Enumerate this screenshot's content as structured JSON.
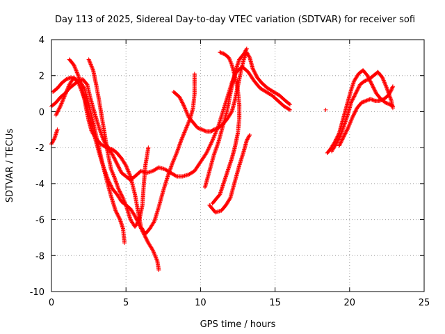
{
  "chart_data": {
    "type": "scatter",
    "title": "Day 113 of 2025, Sidereal Day-to-day VTEC variation (SDTVAR) for receiver sofi",
    "xlabel": "GPS time / hours",
    "ylabel": "SDTVAR / TECUs",
    "xlim": [
      0,
      25
    ],
    "ylim": [
      -10,
      4
    ],
    "xticks": [
      "0",
      "5",
      "10",
      "15",
      "20",
      "25"
    ],
    "yticks": [
      "-10",
      "-8",
      "-6",
      "-4",
      "-2",
      "0",
      "2",
      "4"
    ],
    "grid": true,
    "marker": "+",
    "color": "#ff0000",
    "series": [
      {
        "points": [
          [
            0.0,
            -1.8
          ],
          [
            0.2,
            -1.5
          ],
          [
            0.4,
            -1.0
          ]
        ]
      },
      {
        "points": [
          [
            0.0,
            0.3
          ],
          [
            0.3,
            0.5
          ],
          [
            0.6,
            0.8
          ],
          [
            0.9,
            1.0
          ],
          [
            1.2,
            1.3
          ],
          [
            1.5,
            1.5
          ],
          [
            1.8,
            1.7
          ],
          [
            2.1,
            1.8
          ],
          [
            2.4,
            1.5
          ],
          [
            2.6,
            0.8
          ],
          [
            2.9,
            -0.1
          ],
          [
            3.2,
            -0.9
          ],
          [
            3.5,
            -1.6
          ],
          [
            3.8,
            -2.0
          ],
          [
            4.1,
            -2.4
          ],
          [
            4.4,
            -2.9
          ],
          [
            4.7,
            -3.4
          ],
          [
            5.0,
            -3.6
          ],
          [
            5.3,
            -3.8
          ],
          [
            5.6,
            -3.6
          ],
          [
            6.0,
            -3.3
          ],
          [
            6.4,
            -3.4
          ],
          [
            6.8,
            -3.3
          ],
          [
            7.2,
            -3.1
          ],
          [
            7.6,
            -3.2
          ],
          [
            8.0,
            -3.4
          ],
          [
            8.4,
            -3.6
          ],
          [
            8.8,
            -3.6
          ],
          [
            9.2,
            -3.5
          ],
          [
            9.6,
            -3.3
          ],
          [
            10.0,
            -2.8
          ],
          [
            10.4,
            -2.3
          ],
          [
            10.8,
            -1.6
          ],
          [
            11.2,
            -0.8
          ],
          [
            11.5,
            0.0
          ],
          [
            11.8,
            0.8
          ],
          [
            12.1,
            1.6
          ],
          [
            12.4,
            2.2
          ],
          [
            12.8,
            2.5
          ],
          [
            13.2,
            2.2
          ],
          [
            13.6,
            1.7
          ],
          [
            14.0,
            1.3
          ],
          [
            14.4,
            1.1
          ],
          [
            14.8,
            0.9
          ],
          [
            15.2,
            0.6
          ],
          [
            15.6,
            0.3
          ],
          [
            16.0,
            0.1
          ]
        ]
      },
      {
        "points": [
          [
            0.1,
            1.1
          ],
          [
            0.4,
            1.3
          ],
          [
            0.7,
            1.6
          ],
          [
            1.0,
            1.8
          ],
          [
            1.3,
            1.9
          ],
          [
            1.6,
            1.8
          ],
          [
            1.9,
            1.7
          ],
          [
            2.2,
            1.3
          ],
          [
            2.5,
            0.4
          ],
          [
            2.8,
            -0.6
          ],
          [
            3.1,
            -1.7
          ],
          [
            3.4,
            -2.8
          ],
          [
            3.7,
            -3.8
          ],
          [
            4.0,
            -4.7
          ],
          [
            4.3,
            -5.5
          ],
          [
            4.6,
            -6.0
          ],
          [
            4.8,
            -6.5
          ],
          [
            4.9,
            -7.3
          ]
        ]
      },
      {
        "points": [
          [
            0.3,
            -0.2
          ],
          [
            0.6,
            0.3
          ],
          [
            0.9,
            0.9
          ],
          [
            1.2,
            1.5
          ],
          [
            1.5,
            1.9
          ],
          [
            1.8,
            1.6
          ],
          [
            2.0,
            1.2
          ],
          [
            2.3,
            0.5
          ],
          [
            2.6,
            -0.4
          ],
          [
            2.9,
            -1.4
          ],
          [
            3.2,
            -2.3
          ],
          [
            3.5,
            -3.1
          ],
          [
            3.8,
            -3.8
          ],
          [
            4.1,
            -4.3
          ],
          [
            4.4,
            -4.6
          ],
          [
            4.7,
            -5.0
          ],
          [
            5.0,
            -5.2
          ],
          [
            5.3,
            -5.4
          ],
          [
            5.6,
            -5.8
          ],
          [
            5.9,
            -6.3
          ],
          [
            6.2,
            -6.8
          ],
          [
            6.5,
            -7.3
          ],
          [
            6.8,
            -7.7
          ],
          [
            7.1,
            -8.3
          ],
          [
            7.2,
            -8.8
          ]
        ]
      },
      {
        "points": [
          [
            1.2,
            2.9
          ],
          [
            1.5,
            2.6
          ],
          [
            1.8,
            2.0
          ],
          [
            2.1,
            1.2
          ],
          [
            2.3,
            0.3
          ],
          [
            2.5,
            -0.5
          ],
          [
            2.7,
            -1.1
          ],
          [
            3.0,
            -1.5
          ],
          [
            3.3,
            -1.8
          ],
          [
            3.7,
            -2.0
          ],
          [
            4.1,
            -2.1
          ],
          [
            4.4,
            -2.3
          ],
          [
            4.7,
            -2.6
          ],
          [
            5.0,
            -3.0
          ],
          [
            5.3,
            -3.6
          ],
          [
            5.6,
            -4.6
          ],
          [
            5.8,
            -5.5
          ],
          [
            6.0,
            -6.4
          ],
          [
            6.3,
            -6.8
          ],
          [
            6.6,
            -6.5
          ],
          [
            6.9,
            -6.1
          ],
          [
            7.2,
            -5.3
          ],
          [
            7.5,
            -4.4
          ],
          [
            7.8,
            -3.6
          ],
          [
            8.1,
            -2.9
          ],
          [
            8.4,
            -2.3
          ],
          [
            8.7,
            -1.6
          ],
          [
            9.0,
            -1.0
          ],
          [
            9.3,
            -0.4
          ],
          [
            9.5,
            0.2
          ],
          [
            9.6,
            1.0
          ],
          [
            9.6,
            2.1
          ]
        ]
      },
      {
        "points": [
          [
            2.5,
            2.9
          ],
          [
            2.8,
            2.3
          ],
          [
            3.0,
            1.5
          ],
          [
            3.2,
            0.6
          ],
          [
            3.4,
            -0.4
          ],
          [
            3.6,
            -1.4
          ],
          [
            3.8,
            -2.4
          ],
          [
            4.0,
            -3.2
          ],
          [
            4.2,
            -3.6
          ],
          [
            4.5,
            -4.3
          ],
          [
            4.8,
            -4.8
          ],
          [
            5.0,
            -5.2
          ],
          [
            5.3,
            -6.0
          ],
          [
            5.6,
            -6.4
          ],
          [
            5.9,
            -6.0
          ],
          [
            6.1,
            -5.2
          ],
          [
            6.2,
            -4.0
          ],
          [
            6.3,
            -3.0
          ],
          [
            6.5,
            -2.0
          ]
        ]
      },
      {
        "points": [
          [
            8.2,
            1.1
          ],
          [
            8.6,
            0.8
          ],
          [
            8.9,
            0.3
          ],
          [
            9.2,
            -0.3
          ],
          [
            9.5,
            -0.6
          ],
          [
            9.8,
            -0.9
          ],
          [
            10.1,
            -1.0
          ],
          [
            10.4,
            -1.1
          ],
          [
            10.7,
            -1.1
          ],
          [
            10.9,
            -1.0
          ],
          [
            11.2,
            -0.9
          ],
          [
            11.5,
            -0.7
          ],
          [
            11.8,
            -0.4
          ],
          [
            12.1,
            0.0
          ],
          [
            12.3,
            0.6
          ],
          [
            12.5,
            1.4
          ],
          [
            12.7,
            2.2
          ],
          [
            12.9,
            2.9
          ],
          [
            13.1,
            3.3
          ],
          [
            13.3,
            3.0
          ],
          [
            13.5,
            2.4
          ],
          [
            13.8,
            1.9
          ],
          [
            14.1,
            1.6
          ],
          [
            14.5,
            1.3
          ],
          [
            14.9,
            1.1
          ],
          [
            15.3,
            0.9
          ],
          [
            15.7,
            0.6
          ],
          [
            16.0,
            0.4
          ]
        ]
      },
      {
        "points": [
          [
            11.3,
            3.3
          ],
          [
            11.6,
            3.2
          ],
          [
            11.9,
            3.0
          ],
          [
            12.1,
            2.6
          ],
          [
            12.3,
            2.0
          ],
          [
            12.5,
            1.2
          ],
          [
            12.6,
            0.4
          ],
          [
            12.6,
            -0.4
          ],
          [
            12.5,
            -1.2
          ],
          [
            12.3,
            -2.0
          ],
          [
            12.1,
            -2.6
          ],
          [
            11.9,
            -3.1
          ],
          [
            11.7,
            -3.6
          ],
          [
            11.5,
            -4.1
          ],
          [
            11.3,
            -4.6
          ],
          [
            11.0,
            -4.9
          ],
          [
            10.8,
            -5.1
          ]
        ]
      },
      {
        "points": [
          [
            10.3,
            -4.2
          ],
          [
            10.6,
            -3.3
          ],
          [
            10.9,
            -2.4
          ],
          [
            11.2,
            -1.7
          ],
          [
            11.5,
            -0.8
          ],
          [
            11.8,
            0.1
          ],
          [
            12.0,
            1.0
          ],
          [
            12.2,
            1.8
          ],
          [
            12.4,
            2.4
          ],
          [
            12.6,
            2.9
          ],
          [
            12.9,
            3.2
          ],
          [
            13.1,
            3.5
          ]
        ]
      },
      {
        "points": [
          [
            10.6,
            -5.2
          ],
          [
            11.0,
            -5.6
          ],
          [
            11.4,
            -5.5
          ],
          [
            11.7,
            -5.2
          ],
          [
            12.0,
            -4.8
          ],
          [
            12.3,
            -3.9
          ],
          [
            12.6,
            -3.0
          ],
          [
            12.9,
            -2.2
          ],
          [
            13.1,
            -1.6
          ],
          [
            13.3,
            -1.3
          ]
        ]
      },
      {
        "points": [
          [
            18.4,
            0.1
          ]
        ]
      },
      {
        "points": [
          [
            18.5,
            -2.3
          ],
          [
            18.7,
            -2.1
          ],
          [
            19.0,
            -1.7
          ],
          [
            19.3,
            -1.2
          ],
          [
            19.5,
            -0.6
          ],
          [
            19.7,
            0.0
          ],
          [
            19.9,
            0.6
          ],
          [
            20.1,
            1.2
          ],
          [
            20.3,
            1.7
          ],
          [
            20.6,
            2.1
          ],
          [
            20.9,
            2.3
          ],
          [
            21.2,
            2.0
          ],
          [
            21.5,
            1.5
          ],
          [
            21.8,
            1.0
          ],
          [
            22.1,
            0.7
          ],
          [
            22.4,
            0.5
          ],
          [
            22.7,
            0.4
          ],
          [
            22.9,
            0.3
          ]
        ]
      },
      {
        "points": [
          [
            18.8,
            -2.2
          ],
          [
            19.1,
            -1.8
          ],
          [
            19.4,
            -1.3
          ],
          [
            19.7,
            -0.6
          ],
          [
            19.9,
            -0.1
          ],
          [
            20.1,
            0.5
          ],
          [
            20.4,
            1.0
          ],
          [
            20.7,
            1.5
          ],
          [
            21.0,
            1.7
          ],
          [
            21.3,
            1.8
          ],
          [
            21.6,
            2.0
          ],
          [
            21.9,
            2.2
          ],
          [
            22.2,
            1.9
          ],
          [
            22.5,
            1.3
          ],
          [
            22.8,
            0.6
          ],
          [
            22.9,
            0.2
          ]
        ]
      },
      {
        "points": [
          [
            19.3,
            -1.9
          ],
          [
            19.6,
            -1.4
          ],
          [
            19.9,
            -0.9
          ],
          [
            20.2,
            -0.3
          ],
          [
            20.5,
            0.2
          ],
          [
            20.8,
            0.5
          ],
          [
            21.1,
            0.6
          ],
          [
            21.4,
            0.7
          ],
          [
            21.7,
            0.6
          ],
          [
            22.0,
            0.6
          ],
          [
            22.3,
            0.7
          ],
          [
            22.6,
            0.9
          ],
          [
            22.8,
            1.2
          ],
          [
            22.9,
            1.4
          ]
        ]
      }
    ]
  }
}
